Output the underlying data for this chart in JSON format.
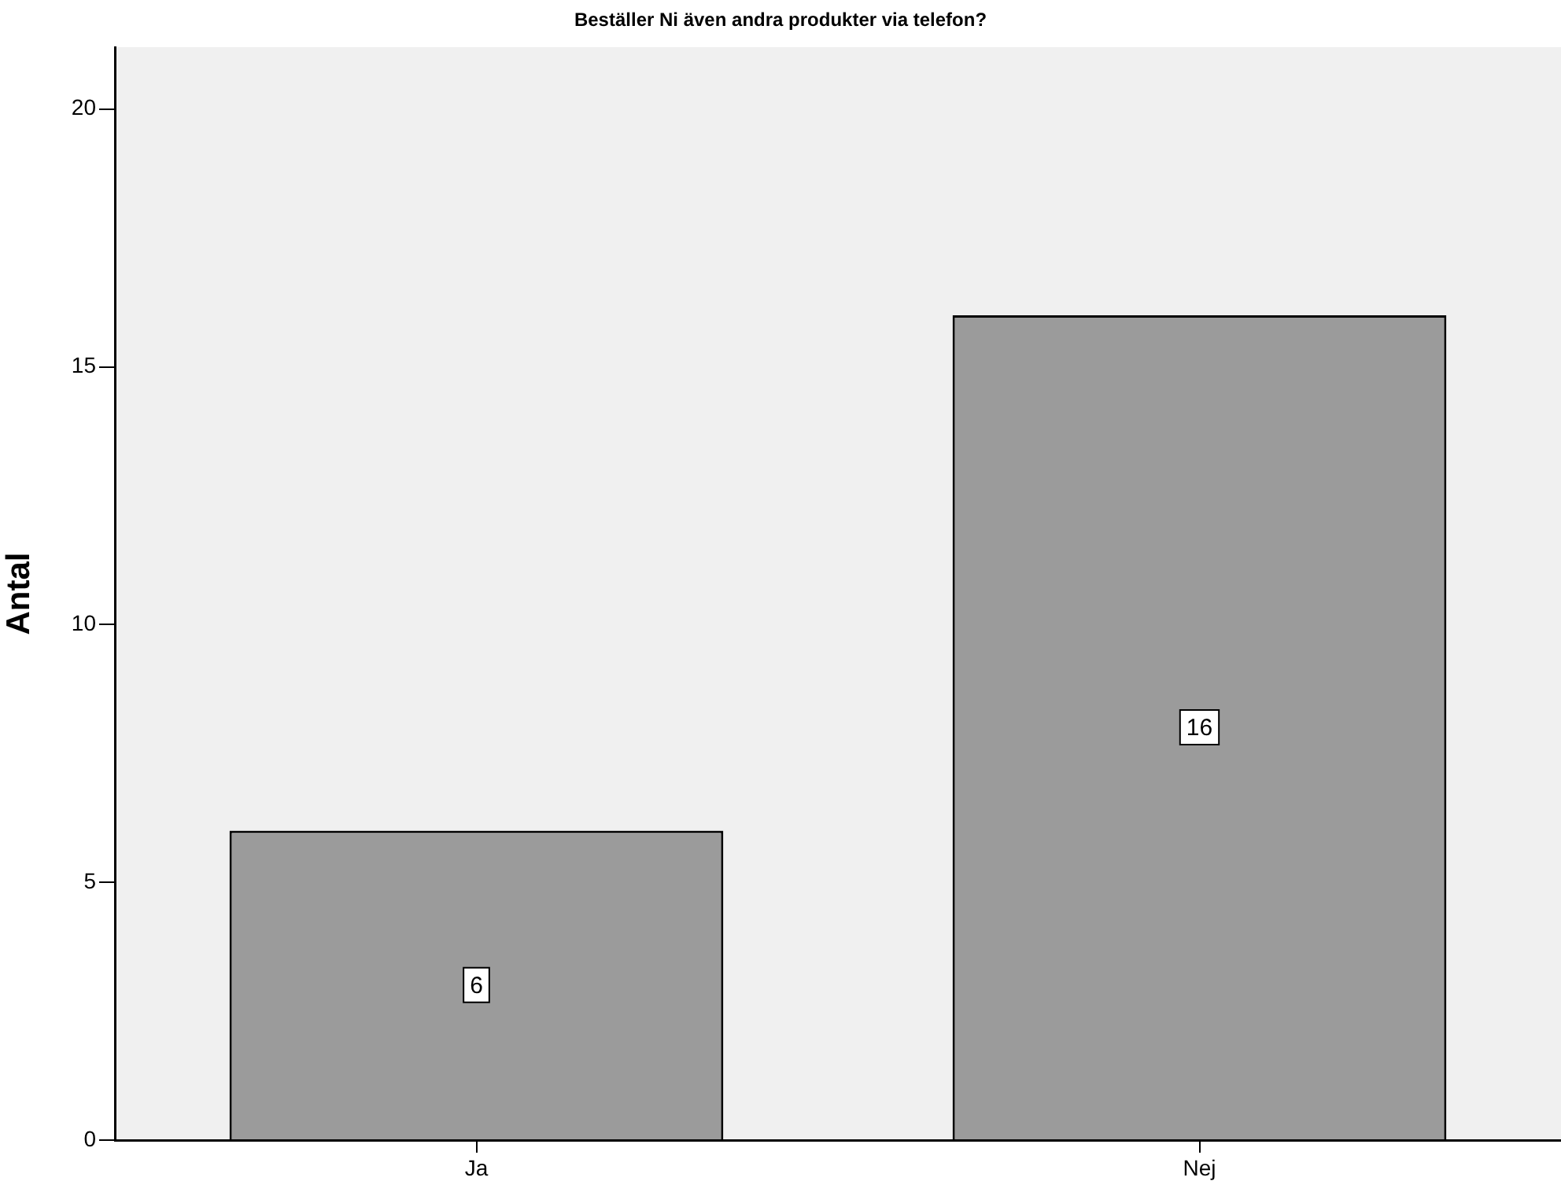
{
  "chart_data": {
    "type": "bar",
    "title": "Beställer Ni även andra produkter via telefon?",
    "ylabel": "Antal",
    "categories": [
      "Ja",
      "Nej"
    ],
    "values": [
      6,
      16
    ],
    "color": "#9b9b9b",
    "ylim": [
      0,
      21.2
    ],
    "yticks": [
      0,
      5,
      10,
      15,
      20
    ],
    "grid": false,
    "legend": false,
    "data_labels": true
  }
}
